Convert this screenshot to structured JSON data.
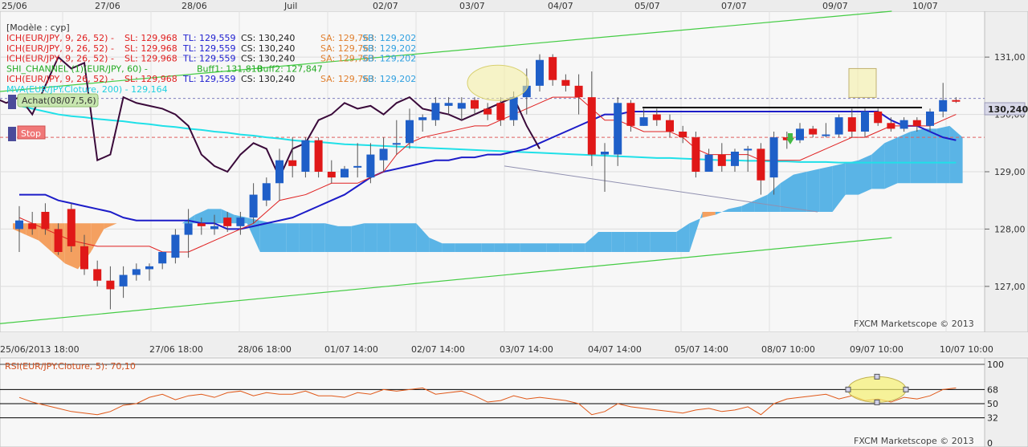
{
  "legend": {
    "model": "[Modèle : cyp]",
    "lines": [
      {
        "name": "ICH(EUR/JPY, 9, 26, 52) -",
        "parts": [
          [
            "SL: 129,968",
            "#e02020"
          ],
          [
            "TL: 129,559",
            "#2020d0"
          ],
          [
            "CS: 130,240",
            "#222222"
          ],
          [
            "SA: 129,763",
            "#e08030"
          ],
          [
            "SB: 129,202",
            "#30a0e0"
          ]
        ],
        "color": "#e02020"
      },
      {
        "name": "ICH(EUR/JPY, 9, 26, 52) -",
        "parts": [
          [
            "SL: 129,968",
            "#e02020"
          ],
          [
            "TL: 129,559",
            "#2020d0"
          ],
          [
            "CS: 130,240",
            "#222222"
          ],
          [
            "SA: 129,763",
            "#e08030"
          ],
          [
            "SB: 129,202",
            "#30a0e0"
          ]
        ],
        "color": "#e02020"
      },
      {
        "name": "ICH(EUR/JPY, 9, 26, 52) -",
        "parts": [
          [
            "SL: 129,968",
            "#e02020"
          ],
          [
            "TL: 129,559",
            "#2020d0"
          ],
          [
            "CS: 130,240",
            "#222222"
          ],
          [
            "SA: 129,763",
            "#e08030"
          ],
          [
            "SB: 129,202",
            "#30a0e0"
          ]
        ],
        "color": "#e02020"
      },
      {
        "name": "SHI_CHANNEL (1)(EUR/JPY, 60) -",
        "parts": [
          [
            "Buff1: 131,810",
            "#22aa22"
          ],
          [
            "Buff2: 127,847",
            "#22aa22"
          ]
        ],
        "color": "#22aa22"
      },
      {
        "name": "ICH(EUR/JPY, 9, 26, 52) -",
        "parts": [
          [
            "SL: 129,968",
            "#e02020"
          ],
          [
            "TL: 129,559",
            "#2020d0"
          ],
          [
            "CS: 130,240",
            "#222222"
          ],
          [
            "SA: 129,763",
            "#e08030"
          ],
          [
            "SB: 129,202",
            "#30a0e0"
          ]
        ],
        "color": "#e02020"
      },
      {
        "name": "MVA(EUR/JPY.Cloture, 200) - 129,164",
        "parts": [],
        "color": "#20d0e0"
      }
    ]
  },
  "orders": {
    "buy": "Achat(08/07,5,6)",
    "stop": "Stop"
  },
  "top_dates": [
    "25/06",
    "27/06",
    "28/06",
    "Juil",
    "02/07",
    "03/07",
    "04/07",
    "05/07",
    "07/07",
    "09/07",
    "10/07"
  ],
  "price_axis": {
    "ticks": [
      "131,00",
      "130,00",
      "129,00",
      "128,00",
      "127,00"
    ],
    "current_price": "130,240"
  },
  "date_axis": {
    "labels": [
      "25/06/2013 18:00",
      "27/06 18:00",
      "28/06 18:00",
      "01/07 14:00",
      "02/07 14:00",
      "03/07 14:00",
      "04/07 14:00",
      "05/07 14:00",
      "08/07 10:00",
      "09/07 10:00",
      "10/07 10:00"
    ]
  },
  "watermark": "FXCM Marketscope © 2013",
  "rsi": {
    "label": "RSI(EUR/JPY.Cloture, 5): 70,10",
    "ticks": [
      "100",
      "68",
      "50",
      "32",
      "0"
    ],
    "levels": [
      100,
      68,
      50,
      32,
      0
    ]
  },
  "colors": {
    "bull": "#1f5fc8",
    "bear": "#e01818",
    "tenkan": "#e02020",
    "kijun": "#1c1cc8",
    "chikou": "#3a0a3a",
    "mva": "#20e0e8",
    "channel": "#44cc44",
    "cloud_bull": "#5ab4e6",
    "cloud_bear": "#f4a060",
    "rsi": "#e05818"
  },
  "chart_data": {
    "type": "candlestick",
    "symbol": "EUR/JPY",
    "ylim": [
      126.2,
      131.8
    ],
    "candles": [
      {
        "o": 128.0,
        "h": 128.4,
        "l": 127.6,
        "c": 128.15
      },
      {
        "o": 128.1,
        "h": 128.3,
        "l": 127.9,
        "c": 128.0
      },
      {
        "o": 128.3,
        "h": 128.45,
        "l": 127.9,
        "c": 128.0
      },
      {
        "o": 128.0,
        "h": 128.1,
        "l": 127.55,
        "c": 127.6
      },
      {
        "o": 128.35,
        "h": 128.45,
        "l": 127.6,
        "c": 127.7
      },
      {
        "o": 127.7,
        "h": 127.9,
        "l": 127.2,
        "c": 127.3
      },
      {
        "o": 127.3,
        "h": 127.45,
        "l": 127.0,
        "c": 127.1
      },
      {
        "o": 127.1,
        "h": 127.35,
        "l": 126.6,
        "c": 126.95
      },
      {
        "o": 127.0,
        "h": 127.35,
        "l": 126.8,
        "c": 127.2
      },
      {
        "o": 127.2,
        "h": 127.4,
        "l": 127.1,
        "c": 127.3
      },
      {
        "o": 127.3,
        "h": 127.4,
        "l": 127.1,
        "c": 127.35
      },
      {
        "o": 127.4,
        "h": 127.6,
        "l": 127.3,
        "c": 127.6
      },
      {
        "o": 127.5,
        "h": 128.0,
        "l": 127.4,
        "c": 127.9
      },
      {
        "o": 127.9,
        "h": 128.35,
        "l": 127.5,
        "c": 128.1
      },
      {
        "o": 128.1,
        "h": 128.2,
        "l": 127.9,
        "c": 128.05
      },
      {
        "o": 128.0,
        "h": 128.25,
        "l": 127.9,
        "c": 128.05
      },
      {
        "o": 128.2,
        "h": 128.3,
        "l": 127.95,
        "c": 128.05
      },
      {
        "o": 128.05,
        "h": 128.3,
        "l": 127.9,
        "c": 128.2
      },
      {
        "o": 128.2,
        "h": 128.8,
        "l": 128.1,
        "c": 128.6
      },
      {
        "o": 128.5,
        "h": 128.9,
        "l": 128.4,
        "c": 128.8
      },
      {
        "o": 128.8,
        "h": 129.4,
        "l": 128.5,
        "c": 129.2
      },
      {
        "o": 129.2,
        "h": 129.6,
        "l": 128.9,
        "c": 129.1
      },
      {
        "o": 129.0,
        "h": 129.6,
        "l": 128.9,
        "c": 129.55
      },
      {
        "o": 129.55,
        "h": 129.6,
        "l": 128.9,
        "c": 129.0
      },
      {
        "o": 129.0,
        "h": 129.2,
        "l": 128.8,
        "c": 128.9
      },
      {
        "o": 128.9,
        "h": 129.1,
        "l": 128.9,
        "c": 129.05
      },
      {
        "o": 129.1,
        "h": 129.5,
        "l": 128.9,
        "c": 129.1
      },
      {
        "o": 128.9,
        "h": 129.5,
        "l": 128.8,
        "c": 129.3
      },
      {
        "o": 129.2,
        "h": 129.6,
        "l": 129.0,
        "c": 129.4
      },
      {
        "o": 129.5,
        "h": 129.9,
        "l": 129.3,
        "c": 129.5
      },
      {
        "o": 129.5,
        "h": 130.1,
        "l": 129.4,
        "c": 129.9
      },
      {
        "o": 129.9,
        "h": 130.0,
        "l": 129.7,
        "c": 129.95
      },
      {
        "o": 129.9,
        "h": 130.3,
        "l": 129.8,
        "c": 130.2
      },
      {
        "o": 130.15,
        "h": 130.3,
        "l": 130.0,
        "c": 130.2
      },
      {
        "o": 130.1,
        "h": 130.3,
        "l": 129.9,
        "c": 130.2
      },
      {
        "o": 130.25,
        "h": 130.3,
        "l": 130.0,
        "c": 130.1
      },
      {
        "o": 130.1,
        "h": 130.2,
        "l": 129.9,
        "c": 130.0
      },
      {
        "o": 130.2,
        "h": 130.3,
        "l": 129.8,
        "c": 129.9
      },
      {
        "o": 129.9,
        "h": 130.4,
        "l": 129.8,
        "c": 130.3
      },
      {
        "o": 130.3,
        "h": 130.8,
        "l": 130.0,
        "c": 130.5
      },
      {
        "o": 130.5,
        "h": 131.05,
        "l": 130.4,
        "c": 130.95
      },
      {
        "o": 131.0,
        "h": 131.05,
        "l": 130.5,
        "c": 130.6
      },
      {
        "o": 130.6,
        "h": 130.7,
        "l": 130.4,
        "c": 130.5
      },
      {
        "o": 130.5,
        "h": 130.7,
        "l": 130.0,
        "c": 130.3
      },
      {
        "o": 130.3,
        "h": 130.75,
        "l": 129.1,
        "c": 129.3
      },
      {
        "o": 129.3,
        "h": 129.5,
        "l": 128.65,
        "c": 129.35
      },
      {
        "o": 129.3,
        "h": 130.3,
        "l": 129.1,
        "c": 130.2
      },
      {
        "o": 130.2,
        "h": 130.25,
        "l": 129.7,
        "c": 129.8
      },
      {
        "o": 129.8,
        "h": 130.1,
        "l": 129.8,
        "c": 129.95
      },
      {
        "o": 130.0,
        "h": 130.1,
        "l": 129.8,
        "c": 129.9
      },
      {
        "o": 129.9,
        "h": 130.0,
        "l": 129.6,
        "c": 129.7
      },
      {
        "o": 129.7,
        "h": 129.8,
        "l": 129.5,
        "c": 129.6
      },
      {
        "o": 129.6,
        "h": 129.7,
        "l": 128.9,
        "c": 129.0
      },
      {
        "o": 129.0,
        "h": 129.4,
        "l": 129.0,
        "c": 129.3
      },
      {
        "o": 129.3,
        "h": 129.5,
        "l": 129.0,
        "c": 129.1
      },
      {
        "o": 129.1,
        "h": 129.4,
        "l": 129.0,
        "c": 129.35
      },
      {
        "o": 129.4,
        "h": 129.45,
        "l": 129.0,
        "c": 129.4
      },
      {
        "o": 129.4,
        "h": 129.5,
        "l": 128.6,
        "c": 128.85
      },
      {
        "o": 128.9,
        "h": 129.7,
        "l": 128.6,
        "c": 129.6
      },
      {
        "o": 129.6,
        "h": 129.7,
        "l": 129.4,
        "c": 129.55
      },
      {
        "o": 129.55,
        "h": 129.85,
        "l": 129.5,
        "c": 129.75
      },
      {
        "o": 129.75,
        "h": 129.8,
        "l": 129.6,
        "c": 129.65
      },
      {
        "o": 129.65,
        "h": 129.85,
        "l": 129.6,
        "c": 129.65
      },
      {
        "o": 129.65,
        "h": 130.0,
        "l": 129.6,
        "c": 129.95
      },
      {
        "o": 129.95,
        "h": 130.1,
        "l": 129.6,
        "c": 129.7
      },
      {
        "o": 129.7,
        "h": 130.1,
        "l": 129.6,
        "c": 130.05
      },
      {
        "o": 130.05,
        "h": 130.1,
        "l": 129.8,
        "c": 129.85
      },
      {
        "o": 129.85,
        "h": 129.95,
        "l": 129.7,
        "c": 129.75
      },
      {
        "o": 129.75,
        "h": 129.95,
        "l": 129.7,
        "c": 129.9
      },
      {
        "o": 129.9,
        "h": 129.95,
        "l": 129.7,
        "c": 129.8
      },
      {
        "o": 129.8,
        "h": 130.1,
        "l": 129.7,
        "c": 130.05
      },
      {
        "o": 130.05,
        "h": 130.55,
        "l": 129.95,
        "c": 130.25
      },
      {
        "o": 130.25,
        "h": 130.3,
        "l": 130.2,
        "c": 130.24
      }
    ],
    "tenkan": [
      128.2,
      128.1,
      128.0,
      127.9,
      127.8,
      127.75,
      127.7,
      127.7,
      127.7,
      127.7,
      127.7,
      127.6,
      127.6,
      127.6,
      127.7,
      127.8,
      127.9,
      128.0,
      128.1,
      128.3,
      128.5,
      128.55,
      128.6,
      128.7,
      128.8,
      128.8,
      128.8,
      128.9,
      129.0,
      129.3,
      129.5,
      129.6,
      129.65,
      129.7,
      129.75,
      129.8,
      129.8,
      129.9,
      130.0,
      130.1,
      130.2,
      130.3,
      130.3,
      130.3,
      130.1,
      129.9,
      129.9,
      129.8,
      129.7,
      129.7,
      129.7,
      129.6,
      129.4,
      129.3,
      129.3,
      129.3,
      129.3,
      129.2,
      129.2,
      129.2,
      129.2,
      129.3,
      129.4,
      129.5,
      129.6,
      129.6,
      129.7,
      129.8,
      129.8,
      129.8,
      129.8,
      129.9,
      130.0
    ],
    "kijun": [
      128.6,
      128.6,
      128.6,
      128.5,
      128.45,
      128.4,
      128.35,
      128.3,
      128.2,
      128.15,
      128.15,
      128.15,
      128.15,
      128.15,
      128.1,
      128.1,
      128.0,
      128.0,
      128.05,
      128.1,
      128.15,
      128.2,
      128.3,
      128.4,
      128.5,
      128.6,
      128.75,
      128.9,
      129.0,
      129.05,
      129.1,
      129.15,
      129.2,
      129.2,
      129.25,
      129.25,
      129.3,
      129.3,
      129.35,
      129.4,
      129.5,
      129.6,
      129.7,
      129.8,
      129.9,
      130.0,
      130.0,
      130.05,
      130.05,
      130.05,
      130.05,
      130.05,
      130.05,
      130.05,
      130.05,
      130.05,
      130.05,
      130.05,
      130.05,
      130.05,
      130.05,
      130.05,
      130.05,
      130.05,
      130.05,
      130.05,
      130.05,
      129.9,
      129.8,
      129.8,
      129.7,
      129.6,
      129.55
    ],
    "mva": [
      130.15,
      130.1,
      130.05,
      130.0,
      129.97,
      129.95,
      129.92,
      129.9,
      129.88,
      129.85,
      129.83,
      129.8,
      129.78,
      129.75,
      129.73,
      129.7,
      129.68,
      129.65,
      129.63,
      129.6,
      129.58,
      129.55,
      129.53,
      129.52,
      129.5,
      129.48,
      129.47,
      129.46,
      129.45,
      129.44,
      129.43,
      129.42,
      129.41,
      129.4,
      129.39,
      129.38,
      129.37,
      129.36,
      129.35,
      129.34,
      129.33,
      129.32,
      129.31,
      129.3,
      129.29,
      129.28,
      129.27,
      129.26,
      129.25,
      129.24,
      129.24,
      129.23,
      129.22,
      129.21,
      129.2,
      129.2,
      129.19,
      129.19,
      129.18,
      129.18,
      129.17,
      129.17,
      129.17,
      129.16,
      129.16,
      129.16,
      129.16,
      129.16,
      129.16,
      129.16,
      129.16,
      129.16,
      129.16
    ],
    "chikou": [
      130.3,
      130.2,
      130.3,
      130.0,
      130.5,
      131.0,
      130.8,
      130.9,
      129.2,
      129.3,
      130.3,
      130.2,
      130.15,
      130.1,
      130.0,
      129.8,
      129.3,
      129.1,
      129.0,
      129.3,
      129.5,
      129.4,
      128.9,
      129.4,
      129.5,
      129.9,
      130.0,
      130.2,
      130.1,
      130.15,
      130.0,
      130.2,
      130.3,
      130.1,
      130.05,
      130.0,
      129.9,
      130.0,
      130.1,
      130.2,
      130.3,
      129.8,
      129.4
    ],
    "senkou_a": [
      128.0,
      127.9,
      127.8,
      127.6,
      127.4,
      127.3,
      127.6,
      128.0,
      128.1,
      128.1,
      128.1,
      128.1,
      128.1,
      128.1,
      128.25,
      128.35,
      128.35,
      128.25,
      128.2,
      128.15,
      128.1,
      128.1,
      128.1,
      128.1,
      128.1,
      128.05,
      128.05,
      128.1,
      128.1,
      128.1,
      128.1,
      128.1,
      127.85,
      127.75,
      127.75,
      127.75,
      127.75,
      127.75,
      127.75,
      127.75,
      127.75,
      127.75,
      127.75,
      127.75,
      127.75,
      127.95,
      127.95,
      127.95,
      127.95,
      127.95,
      127.95,
      127.95,
      128.1,
      128.2,
      128.25,
      128.35,
      128.4,
      128.5,
      128.6,
      128.8,
      128.95,
      129.0,
      129.05,
      129.1,
      129.15,
      129.2,
      129.3,
      129.5,
      129.6,
      129.7,
      129.75,
      129.75,
      129.8,
      129.6,
      129.6,
      129.7,
      129.7,
      129.8,
      129.8
    ],
    "senkou_b": [
      128.1,
      128.1,
      128.1,
      128.1,
      128.1,
      128.1,
      128.1,
      128.1,
      128.1,
      128.1,
      128.1,
      128.1,
      128.1,
      128.1,
      128.1,
      128.1,
      128.1,
      128.1,
      128.1,
      127.6,
      127.6,
      127.6,
      127.6,
      127.6,
      127.6,
      127.6,
      127.6,
      127.6,
      127.6,
      127.6,
      127.6,
      127.6,
      127.6,
      127.6,
      127.6,
      127.6,
      127.6,
      127.6,
      127.6,
      127.6,
      127.6,
      127.6,
      127.6,
      127.6,
      127.6,
      127.6,
      127.6,
      127.6,
      127.6,
      127.6,
      127.6,
      127.6,
      127.6,
      128.3,
      128.3,
      128.3,
      128.3,
      128.3,
      128.3,
      128.3,
      128.3,
      128.3,
      128.3,
      128.3,
      128.6,
      128.6,
      128.7,
      128.7,
      128.8,
      128.8,
      128.8,
      128.8,
      128.8,
      128.8,
      128.8,
      128.8,
      128.8,
      128.8,
      128.8
    ],
    "channel": {
      "upper": [
        [
          0,
          130.4
        ],
        [
          72,
          131.8
        ]
      ],
      "lower": [
        [
          0,
          126.35
        ],
        [
          72,
          127.85
        ]
      ]
    },
    "rsi": [
      58,
      52,
      48,
      44,
      40,
      38,
      36,
      40,
      48,
      50,
      58,
      62,
      55,
      60,
      62,
      58,
      64,
      66,
      60,
      64,
      62,
      62,
      66,
      60,
      60,
      58,
      64,
      62,
      68,
      66,
      68,
      70,
      62,
      64,
      66,
      60,
      52,
      54,
      60,
      56,
      58,
      56,
      54,
      50,
      36,
      40,
      50,
      46,
      44,
      42,
      40,
      38,
      42,
      44,
      40,
      42,
      46,
      36,
      50,
      56,
      58,
      60,
      62,
      56,
      60,
      54,
      56,
      52,
      58,
      56,
      60,
      68,
      70
    ]
  }
}
